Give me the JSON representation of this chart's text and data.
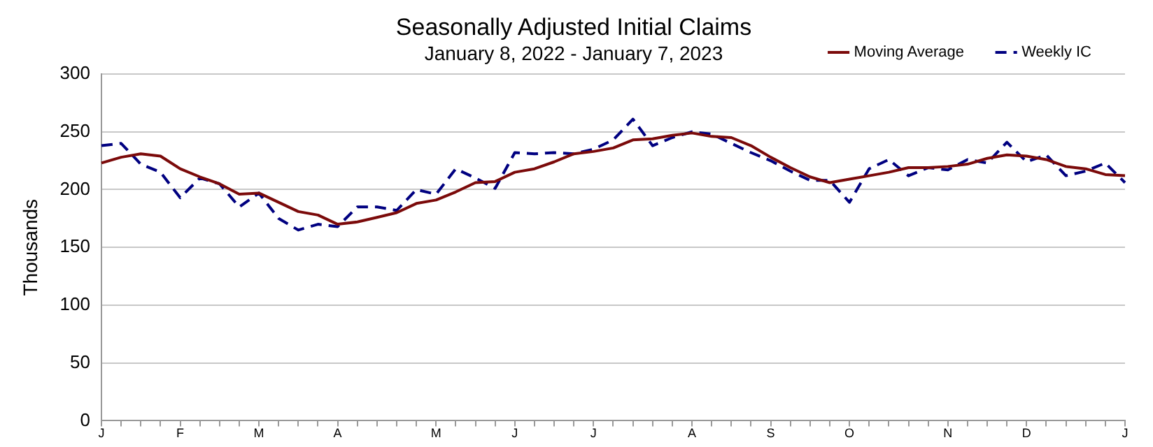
{
  "chart_data": {
    "type": "line",
    "title": "Seasonally Adjusted Initial Claims",
    "subtitle": "January 8, 2022 - January 7, 2023",
    "ylabel": "Thousands",
    "categories": [
      "J",
      null,
      null,
      null,
      "F",
      null,
      null,
      null,
      "M",
      null,
      null,
      null,
      "A",
      null,
      null,
      null,
      null,
      "M",
      null,
      null,
      null,
      "J",
      null,
      null,
      null,
      "J",
      null,
      null,
      null,
      null,
      "A",
      null,
      null,
      null,
      "S",
      null,
      null,
      null,
      "O",
      null,
      null,
      null,
      null,
      "N",
      null,
      null,
      null,
      "D",
      null,
      null,
      null,
      null,
      "J"
    ],
    "series": [
      {
        "name": "Moving Average",
        "color": "#7b0a0a",
        "line_style": "solid",
        "values": [
          223,
          228,
          231,
          229,
          218,
          211,
          205,
          196,
          197,
          189,
          181,
          178,
          170,
          172,
          176,
          180,
          188,
          191,
          198,
          206,
          207,
          215,
          218,
          224,
          231,
          233,
          236,
          243,
          244,
          247,
          249,
          246,
          245,
          238,
          228,
          219,
          211,
          206,
          209,
          212,
          215,
          219,
          219,
          220,
          222,
          227,
          230,
          229,
          226,
          220,
          218,
          213,
          212
        ]
      },
      {
        "name": "Weekly IC",
        "color": "#000080",
        "line_style": "dashed",
        "values": [
          238,
          240,
          222,
          215,
          193,
          210,
          205,
          185,
          197,
          175,
          165,
          170,
          168,
          185,
          185,
          182,
          200,
          196,
          218,
          210,
          201,
          232,
          231,
          232,
          231,
          235,
          243,
          261,
          238,
          245,
          250,
          248,
          240,
          232,
          225,
          216,
          208,
          208,
          189,
          218,
          226,
          212,
          219,
          217,
          226,
          223,
          241,
          224,
          230,
          212,
          216,
          223,
          206
        ]
      }
    ],
    "ylim": [
      0,
      300
    ],
    "yticks": [
      0,
      50,
      100,
      150,
      200,
      250,
      300
    ],
    "grid": "y",
    "legend": "top right",
    "marker": "none"
  }
}
